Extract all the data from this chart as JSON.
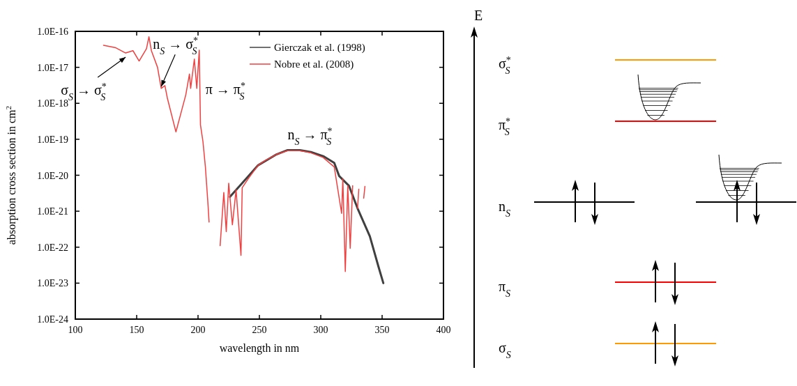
{
  "chart_data": [
    {
      "type": "line",
      "xlabel": "wavelength in nm",
      "ylabel": "absorption cross section in cm$^{2}$",
      "xlim": [
        100,
        400
      ],
      "xticks": [
        100,
        150,
        200,
        250,
        300,
        350,
        400
      ],
      "ylim": [
        1e-24,
        1e-16
      ],
      "log": true,
      "yticks": [
        {
          "value": 1e-16,
          "label": "1.0E-16"
        },
        {
          "value": 1e-17,
          "label": "1.0E-17"
        },
        {
          "value": 1e-18,
          "label": "1.0E-18"
        },
        {
          "value": 1e-19,
          "label": "1.0E-19"
        },
        {
          "value": 1e-20,
          "label": "1.0E-20"
        },
        {
          "value": 1e-21,
          "label": "1.0E-21"
        },
        {
          "value": 1e-22,
          "label": "1.0E-22"
        },
        {
          "value": 1e-23,
          "label": "1.0E-23"
        },
        {
          "value": 1e-24,
          "label": "1.0E-24"
        }
      ],
      "legend": "top right",
      "series": [
        {
          "name": "Gierczak et al. (1998)",
          "color": "#404040",
          "x": [
            226,
            249,
            264,
            273,
            283,
            292,
            302,
            311,
            315,
            323,
            330,
            340,
            347,
            351
          ],
          "values": [
            2.5e-21,
            1.9e-20,
            3.8e-20,
            5e-20,
            5e-20,
            4.4e-20,
            3.4e-20,
            2.2e-20,
            9.5e-21,
            5.1e-21,
            1.2e-21,
            2e-22,
            2.9e-23,
            1e-23
          ]
        },
        {
          "name": "Nobre et al. (2008)",
          "color": "#f04040",
          "x": [
            123,
            133,
            141,
            147,
            152,
            158,
            160,
            162,
            167,
            170,
            173,
            175,
            182,
            186,
            190,
            193,
            194,
            197,
            199,
            201,
            202,
            204,
            206,
            208,
            209,
            212,
            218,
            221,
            223,
            225,
            228,
            231,
            235,
            236,
            241,
            249,
            255,
            264,
            273,
            283,
            292,
            302,
            311,
            317,
            318,
            320,
            322,
            324,
            326,
            328,
            330,
            331,
            333,
            335,
            336
          ],
          "values": [
            4.1e-17,
            3.5e-17,
            2.5e-17,
            2.9e-17,
            1.5e-17,
            3.3e-17,
            7.1e-17,
            2.9e-17,
            1e-17,
            2.6e-18,
            3.1e-18,
            1.4e-18,
            1.6e-19,
            5.2e-19,
            1.7e-18,
            6.5e-18,
            2.6e-18,
            1.7e-17,
            2.6e-18,
            3e-17,
            2.5e-19,
            8.7e-20,
            1.7e-20,
            1.8e-21,
            5e-22,
            null,
            1.1e-22,
            3.3e-21,
            2.7e-22,
            6e-21,
            4.2e-22,
            3.9e-21,
            5.9e-23,
            4.5e-21,
            8.1e-21,
            1.9e-20,
            2.6e-20,
            3.8e-20,
            4.8e-20,
            4.8e-20,
            4.2e-20,
            3.1e-20,
            1.7e-20,
            8.7e-22,
            8.1e-21,
            2.1e-23,
            5.1e-21,
            9.3e-23,
            5.1e-21,
            null,
            1.2e-21,
            4.1e-21,
            null,
            2.3e-21,
            4.9e-21
          ]
        }
      ],
      "annotations": [
        {
          "text": "σ$_{S}$ → σ$^{*}$$_{S}$",
          "x": 141,
          "y": 2.5e-17
        },
        {
          "text": "n$_{S}$ → σ$^{*}$$_{S}$",
          "x": 170,
          "y": 3.5e-18
        },
        {
          "text": "π → π$^{*}$$_{S}$",
          "x": 197,
          "y": 2.6e-18
        },
        {
          "text": "n$_{S}$ → π$^{*}$$_{S}$",
          "x": 273,
          "y": 4.8e-20
        }
      ]
    },
    {
      "type": "other",
      "annotations": [
        "E",
        "σ$^{*}$$_{S}$",
        "π$^{*}$$_{S}$",
        "n$_{S}$",
        "π$_{S}$",
        "σ$_{S}$"
      ]
    }
  ]
}
